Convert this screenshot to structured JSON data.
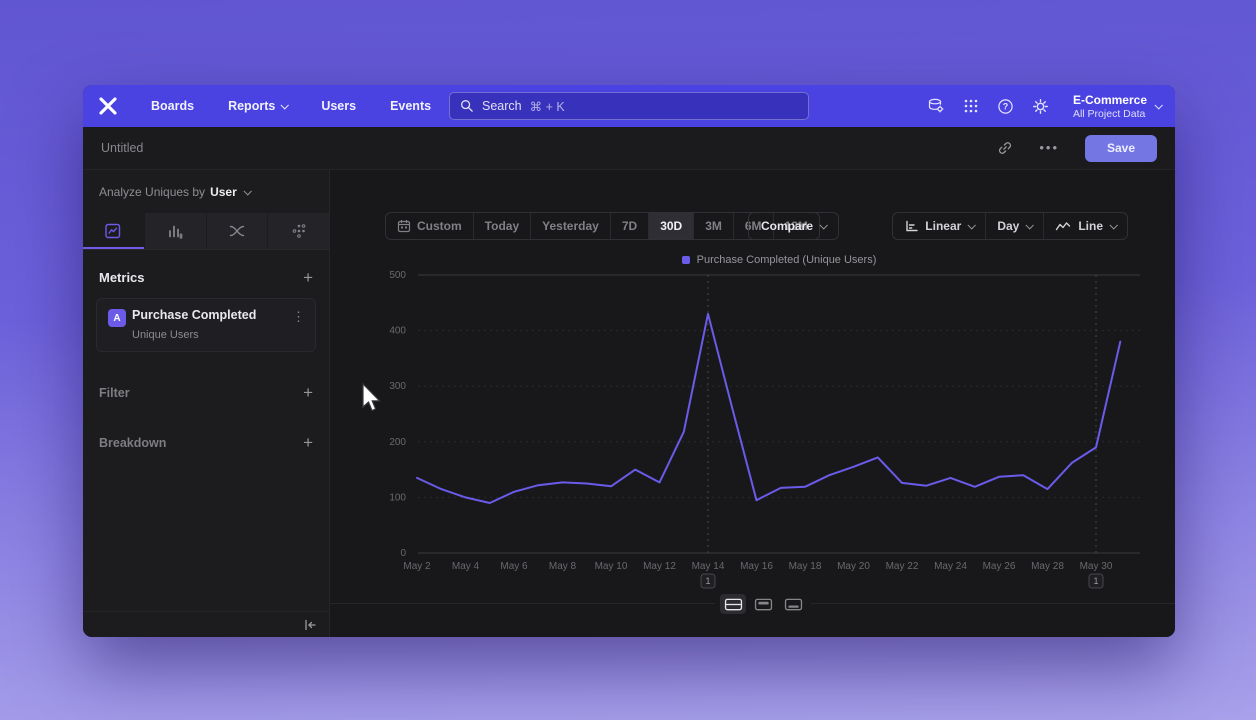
{
  "nav": {
    "logo_name": "mixpanel-logo",
    "items": [
      {
        "label": "Boards",
        "chevron": false
      },
      {
        "label": "Reports",
        "chevron": true
      },
      {
        "label": "Users",
        "chevron": false
      },
      {
        "label": "Events",
        "chevron": false
      }
    ],
    "search": {
      "placeholder": "Search",
      "shortcut": "⌘ + K"
    },
    "project": {
      "name": "E-Commerce",
      "scope": "All Project Data"
    }
  },
  "header": {
    "title": "Untitled",
    "save_label": "Save",
    "more_label": "•••"
  },
  "sidebar": {
    "analyze_label": "Analyze Uniques by",
    "analyze_value": "User",
    "tabs": [
      {
        "icon": "line-chart-square",
        "active": true
      },
      {
        "icon": "bar-chart",
        "active": false
      },
      {
        "icon": "flows",
        "active": false
      },
      {
        "icon": "scatter-dots",
        "active": false
      }
    ],
    "sections": {
      "metrics": "Metrics",
      "filter": "Filter",
      "breakdown": "Breakdown"
    },
    "metric": {
      "badge": "A",
      "name": "Purchase Completed",
      "subtitle": "Unique Users",
      "menu_glyph": "⋮"
    },
    "add_glyph": "+"
  },
  "toolbar": {
    "ranges": [
      "Custom",
      "Today",
      "Yesterday",
      "7D",
      "30D",
      "3M",
      "6M",
      "12M"
    ],
    "active_range": "30D",
    "compare_label": "Compare",
    "scale_label": "Linear",
    "interval_label": "Day",
    "chart_type_label": "Line"
  },
  "icons": {
    "search": "magnifier",
    "data": "database-gear",
    "apps": "grid-3x3-dots",
    "help": "question-circle",
    "settings": "gear",
    "share": "link",
    "more": "ellipsis",
    "collapse": "pipe-left-arrow",
    "calendar": "calendar",
    "scale": "axis-L",
    "line": "zigzag-line"
  },
  "footer_toggles": [
    {
      "icon": "panel-rows",
      "active": true
    },
    {
      "icon": "panel-top",
      "active": false
    },
    {
      "icon": "panel-bottom",
      "active": false
    }
  ],
  "chart_data": {
    "type": "line",
    "legend": [
      "Purchase Completed (Unique Users)"
    ],
    "series_color": "#6a5be8",
    "x": [
      "May 2",
      "May 3",
      "May 4",
      "May 5",
      "May 6",
      "May 7",
      "May 8",
      "May 9",
      "May 10",
      "May 11",
      "May 12",
      "May 13",
      "May 14",
      "May 15",
      "May 16",
      "May 17",
      "May 18",
      "May 19",
      "May 20",
      "May 21",
      "May 22",
      "May 23",
      "May 24",
      "May 25",
      "May 26",
      "May 27",
      "May 28",
      "May 29",
      "May 30",
      "May 31"
    ],
    "values": [
      135,
      115,
      100,
      90,
      110,
      122,
      127,
      125,
      120,
      150,
      127,
      218,
      430,
      260,
      95,
      117,
      119,
      140,
      155,
      172,
      126,
      121,
      135,
      119,
      137,
      140,
      115,
      162,
      190,
      380
    ],
    "yticks": [
      0,
      100,
      200,
      300,
      400,
      500
    ],
    "ylim": [
      0,
      500
    ],
    "x_tick_every": 2,
    "grid": "horizontal-dashed",
    "legend_position": "top-center",
    "annotations": [
      {
        "x": "May 14",
        "label": "1"
      },
      {
        "x": "May 30",
        "label": "1"
      }
    ]
  }
}
